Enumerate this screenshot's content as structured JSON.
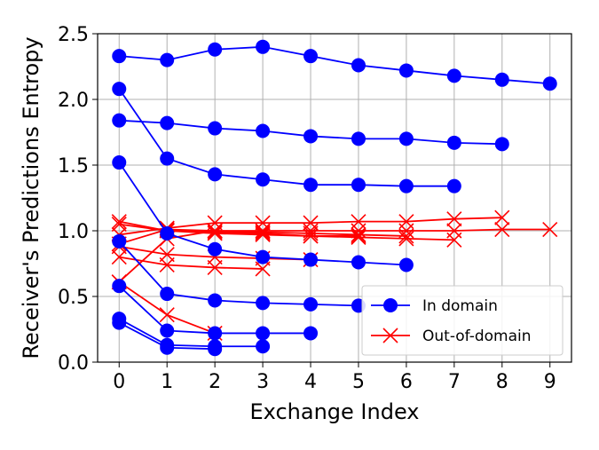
{
  "chart_data": {
    "type": "line",
    "xlabel": "Exchange Index",
    "ylabel": "Receiver's Predictions Entropy",
    "xlim": [
      -0.45,
      9.45
    ],
    "ylim": [
      0.0,
      2.5
    ],
    "xticks": [
      "0",
      "1",
      "2",
      "3",
      "4",
      "5",
      "6",
      "7",
      "8",
      "9"
    ],
    "yticks": [
      "0.0",
      "0.5",
      "1.0",
      "1.5",
      "2.0",
      "2.5"
    ],
    "grid": true,
    "legend_position": "lower right",
    "legend": [
      {
        "label": "In domain",
        "marker": "circle",
        "color": "#0000ff"
      },
      {
        "label": "Out-of-domain",
        "marker": "x",
        "color": "#ff0000"
      }
    ],
    "series": [
      {
        "group": "In domain",
        "color": "#0000ff",
        "marker": "circle",
        "x": [
          0,
          1,
          2,
          3,
          4,
          5,
          6,
          7,
          8,
          9
        ],
        "y": [
          2.33,
          2.3,
          2.38,
          2.4,
          2.33,
          2.26,
          2.22,
          2.18,
          2.15,
          2.12
        ]
      },
      {
        "group": "In domain",
        "color": "#0000ff",
        "marker": "circle",
        "x": [
          0,
          1,
          2,
          3,
          4,
          5,
          6,
          7,
          8
        ],
        "y": [
          1.84,
          1.82,
          1.78,
          1.76,
          1.72,
          1.7,
          1.7,
          1.67,
          1.66
        ]
      },
      {
        "group": "In domain",
        "color": "#0000ff",
        "marker": "circle",
        "x": [
          0,
          1,
          2,
          3,
          4,
          5,
          6,
          7
        ],
        "y": [
          2.08,
          1.55,
          1.43,
          1.39,
          1.35,
          1.35,
          1.34,
          1.34
        ]
      },
      {
        "group": "In domain",
        "color": "#0000ff",
        "marker": "circle",
        "x": [
          0,
          1,
          2,
          3,
          4,
          5,
          6
        ],
        "y": [
          1.52,
          0.98,
          0.86,
          0.8,
          0.78,
          0.76,
          0.74
        ]
      },
      {
        "group": "In domain",
        "color": "#0000ff",
        "marker": "circle",
        "x": [
          0,
          1,
          2,
          3,
          4,
          5
        ],
        "y": [
          0.92,
          0.52,
          0.47,
          0.45,
          0.44,
          0.43
        ]
      },
      {
        "group": "In domain",
        "color": "#0000ff",
        "marker": "circle",
        "x": [
          0,
          1,
          2,
          3,
          4
        ],
        "y": [
          0.58,
          0.24,
          0.22,
          0.22,
          0.22
        ]
      },
      {
        "group": "In domain",
        "color": "#0000ff",
        "marker": "circle",
        "x": [
          0,
          1,
          2,
          3
        ],
        "y": [
          0.33,
          0.13,
          0.12,
          0.12
        ]
      },
      {
        "group": "In domain",
        "color": "#0000ff",
        "marker": "circle",
        "x": [
          0,
          1,
          2
        ],
        "y": [
          0.3,
          0.11,
          0.1
        ]
      },
      {
        "group": "Out-of-domain",
        "color": "#ff0000",
        "marker": "x",
        "x": [
          0,
          1,
          2,
          3,
          4,
          5,
          6,
          7,
          8,
          9
        ],
        "y": [
          0.61,
          0.94,
          1.0,
          1.0,
          1.0,
          1.0,
          1.0,
          1.0,
          1.01,
          1.01
        ]
      },
      {
        "group": "Out-of-domain",
        "color": "#ff0000",
        "marker": "x",
        "x": [
          0,
          1,
          2,
          3,
          4,
          5,
          6,
          7,
          8
        ],
        "y": [
          0.97,
          1.02,
          1.06,
          1.06,
          1.06,
          1.07,
          1.07,
          1.09,
          1.1
        ]
      },
      {
        "group": "Out-of-domain",
        "color": "#ff0000",
        "marker": "x",
        "x": [
          0,
          1,
          2,
          3,
          4,
          5,
          6,
          7
        ],
        "y": [
          1.07,
          1.0,
          0.99,
          0.98,
          0.96,
          0.95,
          0.94,
          0.93
        ]
      },
      {
        "group": "Out-of-domain",
        "color": "#ff0000",
        "marker": "x",
        "x": [
          0,
          1,
          2,
          3,
          4,
          5,
          6
        ],
        "y": [
          0.9,
          1.01,
          1.0,
          0.99,
          0.98,
          0.97,
          0.96
        ]
      },
      {
        "group": "Out-of-domain",
        "color": "#ff0000",
        "marker": "x",
        "x": [
          0,
          1,
          2,
          3,
          4,
          5
        ],
        "y": [
          1.05,
          1.0,
          0.98,
          0.97,
          0.96,
          0.96
        ]
      },
      {
        "group": "Out-of-domain",
        "color": "#ff0000",
        "marker": "x",
        "x": [
          0,
          1,
          2,
          3,
          4
        ],
        "y": [
          0.88,
          0.82,
          0.8,
          0.79,
          0.78
        ]
      },
      {
        "group": "Out-of-domain",
        "color": "#ff0000",
        "marker": "x",
        "x": [
          0,
          1,
          2,
          3
        ],
        "y": [
          0.8,
          0.74,
          0.72,
          0.71
        ]
      },
      {
        "group": "Out-of-domain",
        "color": "#ff0000",
        "marker": "x",
        "x": [
          0,
          1,
          2
        ],
        "y": [
          0.61,
          0.36,
          0.22
        ]
      }
    ]
  }
}
